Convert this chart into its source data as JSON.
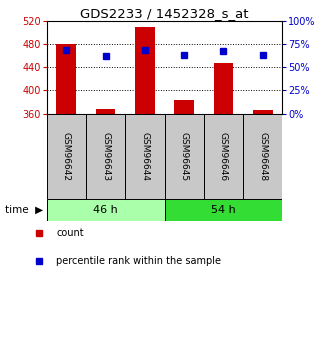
{
  "title": "GDS2233 / 1452328_s_at",
  "samples": [
    "GSM96642",
    "GSM96643",
    "GSM96644",
    "GSM96645",
    "GSM96646",
    "GSM96648"
  ],
  "group_labels": [
    "46 h",
    "54 h"
  ],
  "group_colors": [
    "#AAFFAA",
    "#33DD33"
  ],
  "bar_values": [
    480,
    368,
    510,
    383,
    447,
    367
  ],
  "bar_baseline": 360,
  "percentile_values": [
    68,
    62,
    68,
    63,
    67,
    63
  ],
  "left_ylim": [
    360,
    520
  ],
  "left_yticks": [
    360,
    400,
    440,
    480,
    520
  ],
  "right_ylim": [
    0,
    100
  ],
  "right_yticks": [
    0,
    25,
    50,
    75,
    100
  ],
  "bar_color": "#CC0000",
  "marker_color": "#0000CC",
  "left_tick_color": "#CC0000",
  "right_tick_color": "#0000CC",
  "title_fontsize": 9.5,
  "tick_fontsize": 7,
  "label_fontsize": 7,
  "sample_fontsize": 6.5,
  "group_fontsize": 8
}
